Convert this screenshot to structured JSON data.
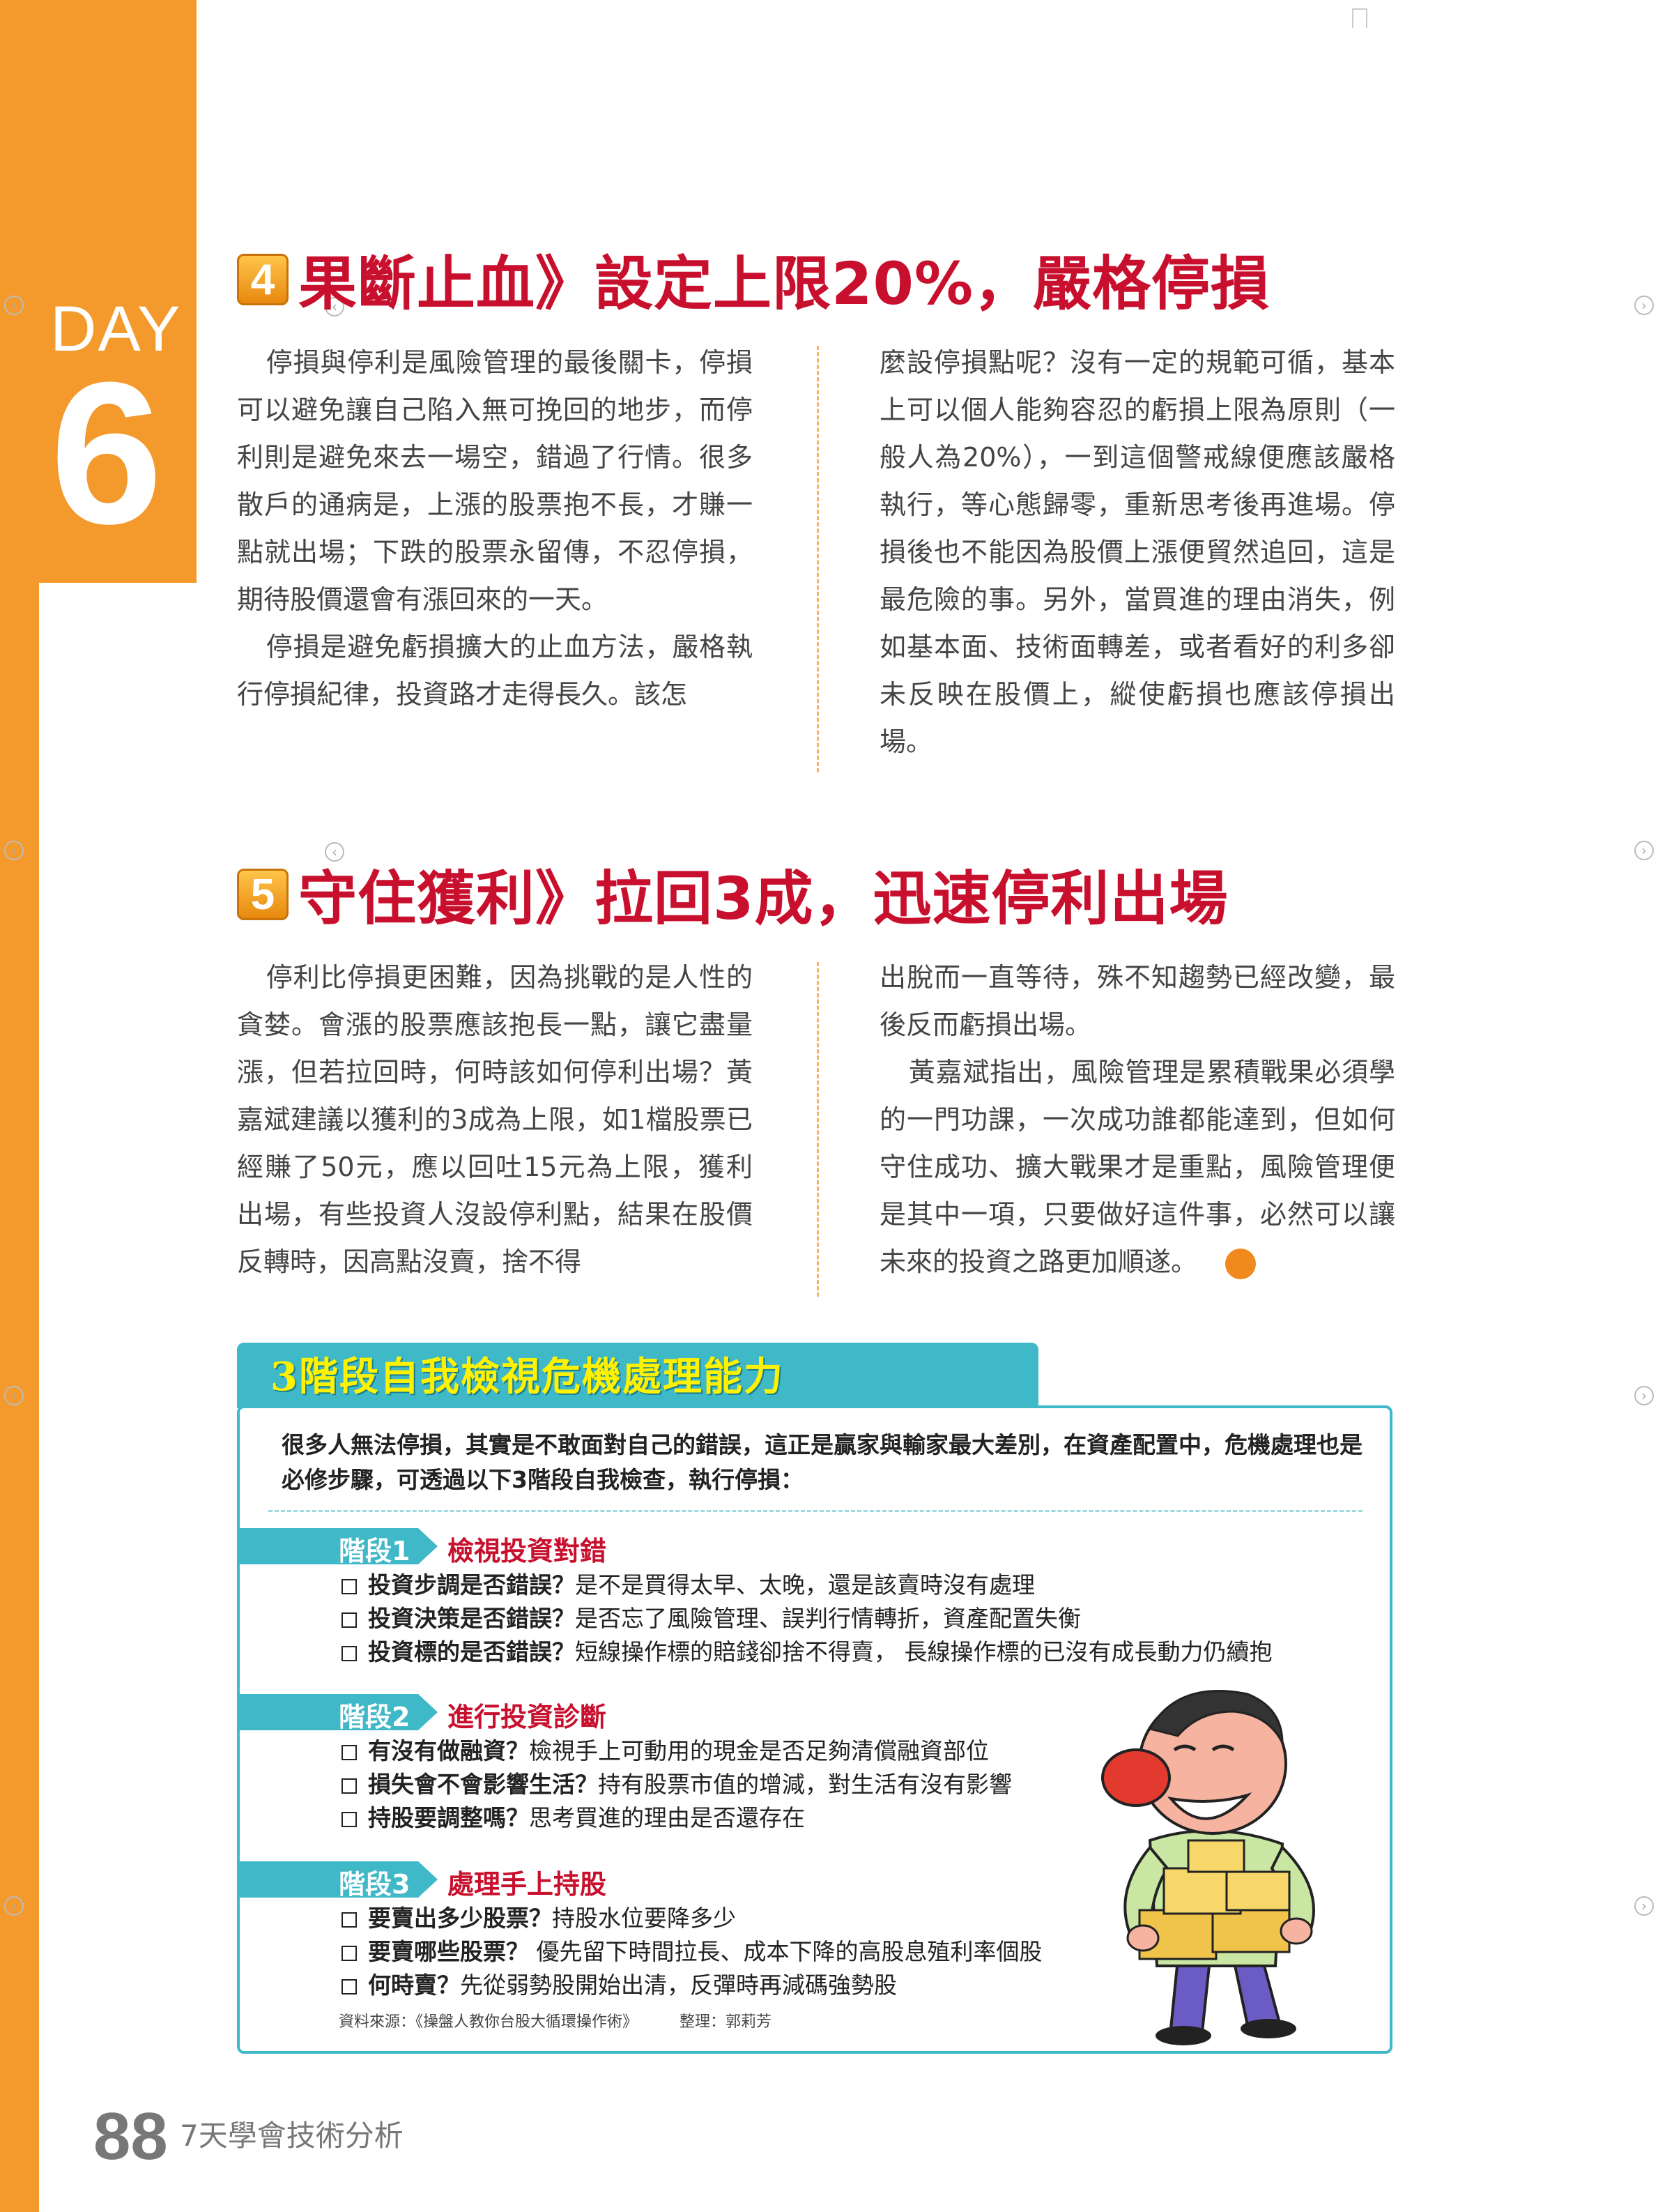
{
  "day": {
    "label": "DAY",
    "number": "6"
  },
  "section4": {
    "number": "4",
    "title": "果斷止血》設定上限20%，嚴格停損",
    "left_paragraphs": [
      "停損與停利是風險管理的最後關卡，停損可以避免讓自己陷入無可挽回的地步，而停利則是避免來去一場空，錯過了行情。很多散戶的通病是，上漲的股票抱不長，才賺一點就出場；下跌的股票永留傳，不忍停損，期待股價還會有漲回來的一天。",
      "停損是避免虧損擴大的止血方法，嚴格執行停損紀律，投資路才走得長久。該怎"
    ],
    "right_paragraphs": [
      "麼設停損點呢？沒有一定的規範可循，基本上可以個人能夠容忍的虧損上限為原則（一般人為20%），一到這個警戒線便應該嚴格執行，等心態歸零，重新思考後再進場。停損後也不能因為股價上漲便貿然追回，這是最危險的事。另外，當買進的理由消失，例如基本面、技術面轉差，或者看好的利多卻未反映在股價上，縱使虧損也應該停損出場。"
    ]
  },
  "section5": {
    "number": "5",
    "title": "守住獲利》拉回3成，迅速停利出場",
    "left_paragraphs": [
      "停利比停損更困難，因為挑戰的是人性的貪婪。會漲的股票應該抱長一點，讓它盡量漲，但若拉回時，何時該如何停利出場？黃嘉斌建議以獲利的3成為上限，如1檔股票已經賺了50元，應以回吐15元為上限，獲利出場，有些投資人沒設停利點，結果在股價反轉時，因高點沒賣，捨不得"
    ],
    "right_paragraphs": [
      "出脫而一直等待，殊不知趨勢已經改變，最後反而虧損出場。",
      "黃嘉斌指出，風險管理是累積戰果必須學的一門功課，一次成功誰都能達到，但如何守住成功、擴大戰果才是重點，風險管理便是其中一項，只要做好這件事，必然可以讓未來的投資之路更加順遂。"
    ],
    "coin_icon": "S"
  },
  "box": {
    "title": "3階段自我檢視危機處理能力",
    "intro": "很多人無法停損，其實是不敢面對自己的錯誤，這正是贏家與輸家最大差別，在資產配置中，危機處理也是必修步驟，可透過以下3階段自我檢查，執行停損：",
    "stages": [
      {
        "label": "階段1",
        "name": "檢視投資對錯",
        "items": [
          {
            "q": "投資步調是否錯誤？",
            "a": "是不是買得太早、太晚，還是該賣時沒有處理"
          },
          {
            "q": "投資決策是否錯誤？",
            "a": "是否忘了風險管理、誤判行情轉折，資產配置失衡"
          },
          {
            "q": "投資標的是否錯誤？",
            "a": "短線操作標的賠錢卻捨不得賣， 長線操作標的已沒有成長動力仍續抱"
          }
        ]
      },
      {
        "label": "階段2",
        "name": "進行投資診斷",
        "items": [
          {
            "q": "有沒有做融資？",
            "a": "檢視手上可動用的現金是否足夠清償融資部位"
          },
          {
            "q": "損失會不會影響生活？",
            "a": "持有股票市值的增減，對生活有沒有影響"
          },
          {
            "q": "持股要調整嗎？",
            "a": "思考買進的理由是否還存在"
          }
        ]
      },
      {
        "label": "階段3",
        "name": "處理手上持股",
        "items": [
          {
            "q": "要賣出多少股票？",
            "a": "持股水位要降多少"
          },
          {
            "q": "要賣哪些股票？",
            "a": " 優先留下時間拉長、成本下降的高股息殖利率個股"
          },
          {
            "q": "何時賣？",
            "a": "先從弱勢股開始出清，反彈時再減碼強勢股"
          }
        ]
      }
    ],
    "source": "資料來源：《操盤人教你台股大循環操作術》",
    "editor": "整理：郭莉芳"
  },
  "footer": {
    "page_number": "88",
    "book_title": "7天學會技術分析"
  },
  "colors": {
    "orange": "#f49a2c",
    "red_title": "#c8102e",
    "teal": "#3fb8c8",
    "yellow_title": "#fff200"
  }
}
